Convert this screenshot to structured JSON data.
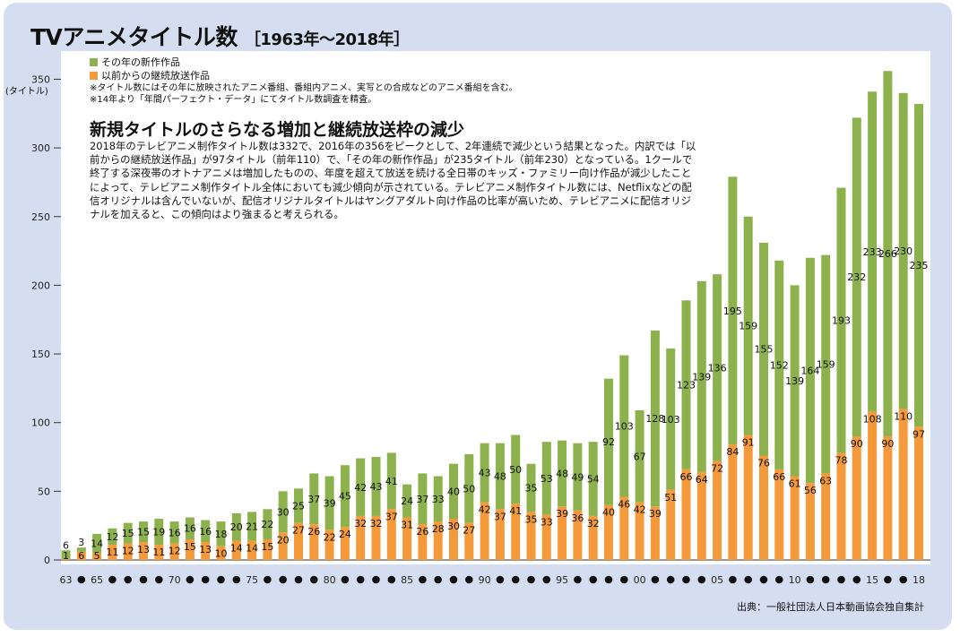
{
  "title": "TVアニメタイトル数",
  "subtitle": "［1963年〜2018年］",
  "legend": {
    "new_label": "その年の新作作品",
    "cont_label": "以前からの継続放送作品",
    "note1": "※タイトル数にはその年に放映されたアニメ番組、番組内アニメ、実写との合成などのアニメ番組を含む。",
    "note2": "※14年より「年間パーフェクト・データ」にてタイトル数調査を精査。"
  },
  "headline": "新規タイトルのさらなる増加と継続放送枠の減少",
  "body": "2018年のテレビアニメ制作タイトル数は332で、2016年の356をピークとして、2年連続で減少という結果となった。内訳では「以前からの継続放送作品」が97タイトル（前年110）で、「その年の新作作品」が235タイトル（前年230）となっている。1クールで終了する深夜帯のオトナアニメは増加したものの、年度を超えて放送を続ける全日帯のキッズ・ファミリー向け作品が減少したことによって、テレビアニメ制作タイトル全体においても減少傾向が示されている。テレビアニメ制作タイトル数には、Netflixなどの配信オリジナルは含んでいないが、配信オリジナルタイトルはヤングアダルト向け作品の比率が高いため、テレビアニメに配信オリジナルを加えると、この傾向はより強まると考えられる。",
  "source": "出典：一般社団法人日本動画協会独自集計",
  "y_unit": "(タイトル)",
  "colors": {
    "new": "#8db24d",
    "continued": "#f59a3a",
    "frame": "#d4def0"
  },
  "chart_data": {
    "type": "bar",
    "stacked": true,
    "ylim": [
      0,
      350
    ],
    "yticks": [
      0,
      50,
      100,
      150,
      200,
      250,
      300,
      350
    ],
    "x": [
      1963,
      1964,
      1965,
      1966,
      1967,
      1968,
      1969,
      1970,
      1971,
      1972,
      1973,
      1974,
      1975,
      1976,
      1977,
      1978,
      1979,
      1980,
      1981,
      1982,
      1983,
      1984,
      1985,
      1986,
      1987,
      1988,
      1989,
      1990,
      1991,
      1992,
      1993,
      1994,
      1995,
      1996,
      1997,
      1998,
      1999,
      2000,
      2001,
      2002,
      2003,
      2004,
      2005,
      2006,
      2007,
      2008,
      2009,
      2010,
      2011,
      2012,
      2013,
      2014,
      2015,
      2016,
      2017,
      2018
    ],
    "x_tick_labels": {
      "1963": "63",
      "1965": "65",
      "1970": "70",
      "1975": "75",
      "1980": "80",
      "1985": "85",
      "1990": "90",
      "1995": "95",
      "2000": "00",
      "2005": "05",
      "2010": "10",
      "2015": "15",
      "2018": "18"
    },
    "series": [
      {
        "name": "以前からの継続放送作品",
        "values": [
          1,
          6,
          5,
          11,
          12,
          13,
          11,
          12,
          15,
          13,
          10,
          14,
          14,
          15,
          20,
          27,
          26,
          22,
          24,
          32,
          32,
          37,
          31,
          26,
          28,
          30,
          27,
          42,
          37,
          41,
          35,
          33,
          39,
          36,
          32,
          40,
          46,
          42,
          39,
          51,
          66,
          64,
          72,
          84,
          91,
          76,
          66,
          61,
          56,
          63,
          78,
          90,
          108,
          90,
          110,
          97
        ]
      },
      {
        "name": "その年の新作作品",
        "values": [
          6,
          3,
          14,
          12,
          15,
          15,
          19,
          16,
          16,
          16,
          18,
          20,
          21,
          22,
          30,
          25,
          37,
          39,
          45,
          42,
          43,
          41,
          24,
          37,
          33,
          40,
          50,
          43,
          48,
          50,
          35,
          53,
          48,
          49,
          54,
          92,
          103,
          67,
          128,
          103,
          123,
          139,
          136,
          195,
          159,
          155,
          152,
          139,
          164,
          159,
          193,
          232,
          233,
          266,
          230,
          235
        ]
      }
    ]
  }
}
